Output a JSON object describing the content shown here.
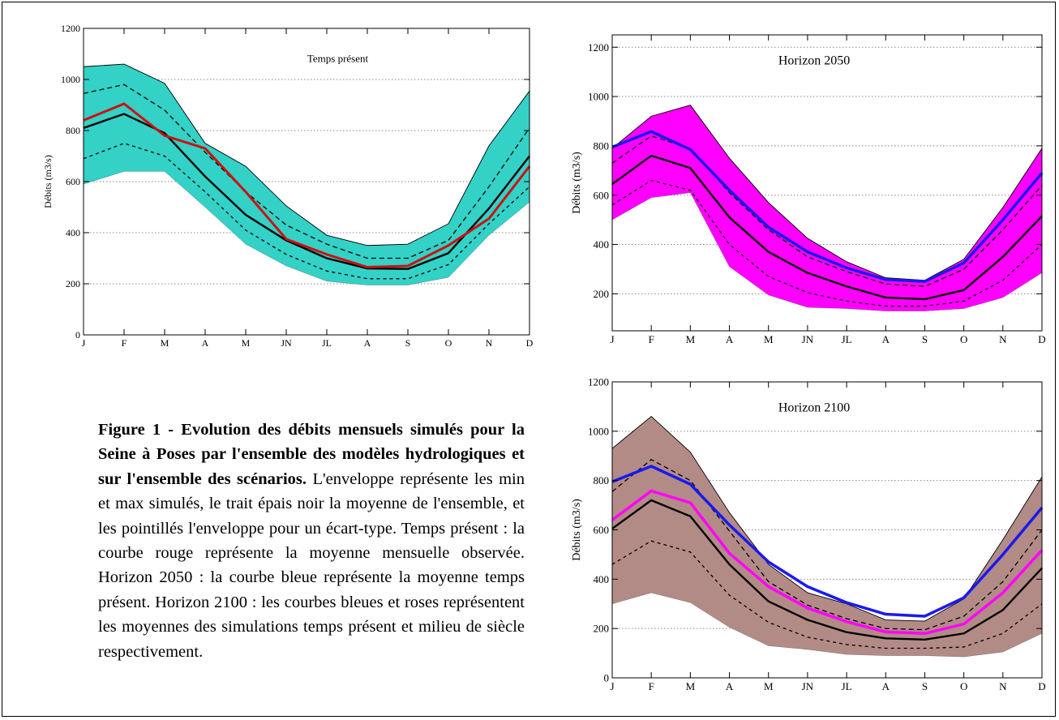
{
  "caption": {
    "bold": "Figure 1 - Evolution des débits mensuels simulés pour la Seine à Poses par l'ensemble des modèles hydrologiques et sur l'ensemble des scénarios.",
    "body": " L'enveloppe représente les min et max simulés, le trait épais noir la moyenne de l'ensemble, et les pointillés l'enveloppe pour un écart-type. Temps présent : la courbe rouge représente la moyenne mensuelle observée. Horizon 2050 : la courbe bleue représente la moyenne temps présent. Horizon 2100 : les courbes bleues et roses représentent les moyennes des simulations temps présent et milieu de siècle respectivement."
  },
  "chart_data": [
    {
      "id": "present",
      "type": "area",
      "title": "Temps présent",
      "ylabel": "Débits (m3/s)",
      "categories": [
        "J",
        "F",
        "M",
        "A",
        "M",
        "JN",
        "JL",
        "A",
        "S",
        "O",
        "N",
        "D"
      ],
      "yticks": [
        0,
        200,
        400,
        600,
        800,
        1000,
        1200
      ],
      "ylim": [
        0,
        1200
      ],
      "grid": "horizontal dotted",
      "envelope": {
        "color": "#33d1c6",
        "min": [
          590,
          640,
          640,
          500,
          355,
          270,
          210,
          195,
          195,
          225,
          390,
          520
        ],
        "max": [
          1050,
          1060,
          985,
          750,
          660,
          505,
          390,
          350,
          355,
          435,
          740,
          955
        ]
      },
      "series": [
        {
          "style": "dashed-upper",
          "color": "#000000",
          "values": [
            945,
            980,
            880,
            715,
            560,
            430,
            355,
            300,
            300,
            370,
            580,
            810
          ]
        },
        {
          "style": "dashed-lower",
          "color": "#000000",
          "values": [
            690,
            750,
            700,
            560,
            410,
            315,
            250,
            220,
            220,
            275,
            435,
            580
          ]
        },
        {
          "style": "mean",
          "color": "#000000",
          "values": [
            810,
            865,
            790,
            620,
            470,
            370,
            300,
            260,
            258,
            320,
            495,
            700
          ]
        },
        {
          "style": "observed",
          "color": "#cc1111",
          "values": [
            840,
            905,
            780,
            730,
            560,
            375,
            315,
            265,
            270,
            350,
            455,
            660
          ]
        }
      ]
    },
    {
      "id": "h2050",
      "type": "area",
      "title": "Horizon 2050",
      "ylabel": "Débits (m3/s)",
      "categories": [
        "J",
        "F",
        "M",
        "A",
        "M",
        "JN",
        "JL",
        "A",
        "S",
        "O",
        "N",
        "D"
      ],
      "yticks": [
        200,
        400,
        600,
        800,
        1000,
        1200
      ],
      "ylim": [
        50,
        1250
      ],
      "grid": "horizontal dotted",
      "envelope": {
        "color": "#ff00ff",
        "min": [
          500,
          590,
          610,
          310,
          195,
          145,
          140,
          130,
          130,
          140,
          185,
          285
        ],
        "max": [
          790,
          920,
          965,
          750,
          570,
          425,
          330,
          265,
          255,
          340,
          550,
          790
        ]
      },
      "series": [
        {
          "style": "dashed-upper",
          "color": "#000000",
          "values": [
            730,
            840,
            790,
            610,
            460,
            350,
            290,
            240,
            230,
            300,
            460,
            640
          ]
        },
        {
          "style": "dashed-lower",
          "color": "#000000",
          "values": [
            560,
            660,
            620,
            400,
            270,
            205,
            170,
            150,
            150,
            170,
            255,
            400
          ]
        },
        {
          "style": "mean",
          "color": "#000000",
          "values": [
            645,
            760,
            710,
            510,
            370,
            285,
            230,
            185,
            178,
            215,
            350,
            515
          ]
        },
        {
          "style": "reference",
          "color": "#1a1aee",
          "values": [
            795,
            858,
            785,
            620,
            470,
            370,
            305,
            258,
            250,
            325,
            500,
            690
          ]
        }
      ]
    },
    {
      "id": "h2100",
      "type": "area",
      "title": "Horizon 2100",
      "ylabel": "Débits (m3/s)",
      "categories": [
        "J",
        "F",
        "M",
        "A",
        "M",
        "JN",
        "JL",
        "A",
        "S",
        "O",
        "N",
        "D"
      ],
      "yticks": [
        0,
        200,
        400,
        600,
        800,
        1000,
        1200
      ],
      "ylim": [
        0,
        1200
      ],
      "grid": "horizontal dotted",
      "envelope": {
        "color": "#b38b86",
        "min": [
          300,
          345,
          305,
          205,
          130,
          115,
          95,
          90,
          90,
          85,
          105,
          180
        ],
        "max": [
          930,
          1060,
          915,
          670,
          460,
          345,
          300,
          235,
          230,
          320,
          560,
          815
        ]
      },
      "series": [
        {
          "style": "dashed-upper",
          "color": "#000000",
          "values": [
            755,
            885,
            800,
            595,
            390,
            295,
            240,
            200,
            195,
            250,
            390,
            600
          ]
        },
        {
          "style": "dashed-lower",
          "color": "#000000",
          "values": [
            460,
            555,
            510,
            335,
            225,
            165,
            135,
            120,
            120,
            125,
            180,
            300
          ]
        },
        {
          "style": "mean",
          "color": "#000000",
          "values": [
            605,
            720,
            655,
            460,
            310,
            235,
            185,
            160,
            155,
            180,
            275,
            445
          ]
        },
        {
          "style": "mid-century",
          "color": "#ff00ff",
          "values": [
            640,
            758,
            710,
            505,
            370,
            283,
            228,
            186,
            180,
            218,
            345,
            518
          ]
        },
        {
          "style": "reference",
          "color": "#1a1aee",
          "values": [
            795,
            858,
            785,
            620,
            470,
            370,
            305,
            258,
            250,
            325,
            500,
            690
          ]
        }
      ]
    }
  ]
}
